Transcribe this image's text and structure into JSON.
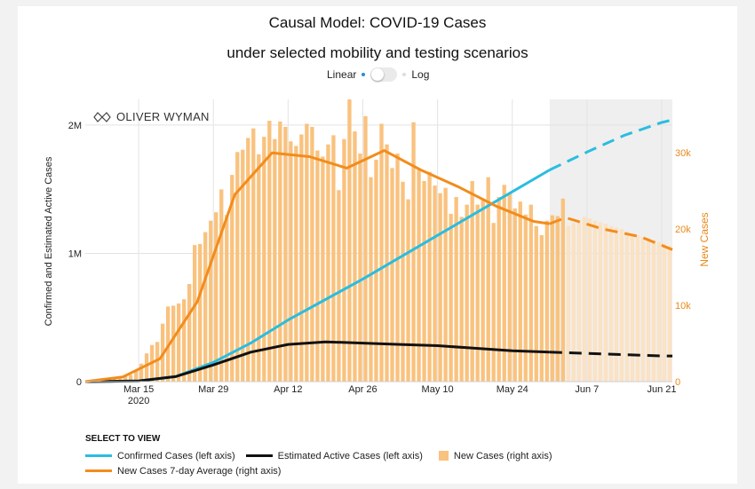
{
  "header": {
    "title": "Causal Model: COVID-19 Cases",
    "subtitle": "under selected mobility and testing scenarios"
  },
  "scale_toggle": {
    "left_label": "Linear",
    "right_label": "Log",
    "selected": "Linear"
  },
  "logo_text": "OLIVER WYMAN",
  "legend": {
    "title": "SELECT TO VIEW",
    "items": [
      {
        "label": "Confirmed Cases (left axis)",
        "color": "#29bde0",
        "kind": "line"
      },
      {
        "label": "Estimated Active Cases (left axis)",
        "color": "#111111",
        "kind": "line"
      },
      {
        "label": "New Cases (right axis)",
        "color": "#f9c27e",
        "kind": "box"
      },
      {
        "label": "New Cases 7-day Average (right axis)",
        "color": "#f28c1c",
        "kind": "line"
      }
    ]
  },
  "chart_data": {
    "type": "bar",
    "ylabel": "Confirmed and Estimated Active Cases",
    "ylabel_right": "New Cases",
    "left_ticks": [
      {
        "v": 0,
        "label": "0"
      },
      {
        "v": 1000000,
        "label": "1M"
      },
      {
        "v": 2000000,
        "label": "2M"
      }
    ],
    "right_ticks": [
      {
        "v": 0,
        "label": "0"
      },
      {
        "v": 10000,
        "label": "10k"
      },
      {
        "v": 20000,
        "label": "20k"
      },
      {
        "v": 30000,
        "label": "30k"
      }
    ],
    "x_ticks": [
      {
        "date": "2020-03-15",
        "label": "Mar 15",
        "label2": "2020"
      },
      {
        "date": "2020-03-29",
        "label": "Mar 29"
      },
      {
        "date": "2020-04-12",
        "label": "Apr 12"
      },
      {
        "date": "2020-04-26",
        "label": "Apr 26"
      },
      {
        "date": "2020-05-10",
        "label": "May 10"
      },
      {
        "date": "2020-05-24",
        "label": "May 24"
      },
      {
        "date": "2020-06-07",
        "label": "Jun 7"
      },
      {
        "date": "2020-06-21",
        "label": "Jun 21"
      }
    ],
    "x_range": [
      "2020-03-05",
      "2020-06-23"
    ],
    "left_ylim": [
      0,
      2200000
    ],
    "right_ylim": [
      0,
      37000
    ],
    "forecast_start": "2020-05-31",
    "new_cases": {
      "start": "2020-03-05",
      "values": [
        60,
        120,
        210,
        280,
        390,
        490,
        590,
        790,
        900,
        1480,
        2350,
        3700,
        4800,
        5200,
        7600,
        9850,
        9950,
        10250,
        10800,
        12800,
        17900,
        18050,
        19600,
        21100,
        22200,
        25200,
        21850,
        27100,
        30100,
        30400,
        31950,
        33200,
        29800,
        32100,
        34200,
        31800,
        34100,
        33400,
        31500,
        30900,
        32400,
        33800,
        33400,
        30300,
        29500,
        31100,
        32300,
        25100,
        31800,
        37000,
        32800,
        29900,
        34800,
        26800,
        29100,
        33800,
        31100,
        28000,
        29900,
        26200,
        23900,
        34000,
        27900,
        26300,
        27500,
        25700,
        24700,
        25400,
        22000,
        24200,
        21600,
        23200,
        26300,
        23200,
        23900,
        26800,
        20800,
        24200,
        25800,
        24700,
        22700,
        23600,
        21900,
        23200,
        20400,
        19200,
        21100,
        21800,
        21700,
        24000
      ],
      "forecast_values": [
        20400,
        20800,
        21100,
        21600,
        21400,
        21100,
        20900,
        20700,
        20400,
        20200,
        20000,
        19700,
        19400,
        19200,
        19000,
        18800,
        18600,
        18300,
        18100,
        17800,
        17600,
        17400,
        17100
      ]
    },
    "series": [
      {
        "name": "Confirmed Cases (left axis)",
        "color": "#29bde0",
        "points": [
          [
            "2020-03-05",
            0
          ],
          [
            "2020-03-15",
            5000
          ],
          [
            "2020-03-22",
            40000
          ],
          [
            "2020-03-29",
            150000
          ],
          [
            "2020-04-05",
            300000
          ],
          [
            "2020-04-12",
            480000
          ],
          [
            "2020-04-19",
            640000
          ],
          [
            "2020-04-26",
            800000
          ],
          [
            "2020-05-03",
            970000
          ],
          [
            "2020-05-10",
            1140000
          ],
          [
            "2020-05-17",
            1310000
          ],
          [
            "2020-05-24",
            1480000
          ],
          [
            "2020-05-31",
            1650000
          ]
        ],
        "forecast": [
          [
            "2020-05-31",
            1650000
          ],
          [
            "2020-06-07",
            1790000
          ],
          [
            "2020-06-14",
            1920000
          ],
          [
            "2020-06-21",
            2020000
          ],
          [
            "2020-06-23",
            2040000
          ]
        ]
      },
      {
        "name": "Estimated Active Cases (left axis)",
        "color": "#111111",
        "points": [
          [
            "2020-03-05",
            0
          ],
          [
            "2020-03-15",
            5000
          ],
          [
            "2020-03-22",
            40000
          ],
          [
            "2020-03-29",
            130000
          ],
          [
            "2020-04-05",
            230000
          ],
          [
            "2020-04-12",
            290000
          ],
          [
            "2020-04-19",
            310000
          ],
          [
            "2020-04-26",
            300000
          ],
          [
            "2020-05-03",
            290000
          ],
          [
            "2020-05-10",
            280000
          ],
          [
            "2020-05-17",
            260000
          ],
          [
            "2020-05-24",
            240000
          ],
          [
            "2020-05-31",
            230000
          ]
        ],
        "forecast": [
          [
            "2020-05-31",
            230000
          ],
          [
            "2020-06-07",
            220000
          ],
          [
            "2020-06-14",
            210000
          ],
          [
            "2020-06-21",
            200000
          ],
          [
            "2020-06-23",
            200000
          ]
        ]
      },
      {
        "name": "New Cases 7-day Average (right axis)",
        "color": "#f28c1c",
        "axis": "right",
        "points": [
          [
            "2020-03-05",
            0
          ],
          [
            "2020-03-12",
            600
          ],
          [
            "2020-03-19",
            3000
          ],
          [
            "2020-03-26",
            10500
          ],
          [
            "2020-04-02",
            24500
          ],
          [
            "2020-04-09",
            30000
          ],
          [
            "2020-04-16",
            29500
          ],
          [
            "2020-04-23",
            28000
          ],
          [
            "2020-04-30",
            30300
          ],
          [
            "2020-05-07",
            27700
          ],
          [
            "2020-05-14",
            25500
          ],
          [
            "2020-05-21",
            23000
          ],
          [
            "2020-05-28",
            21000
          ],
          [
            "2020-05-31",
            20700
          ]
        ],
        "forecast": [
          [
            "2020-05-31",
            20700
          ],
          [
            "2020-06-03",
            21500
          ],
          [
            "2020-06-10",
            20000
          ],
          [
            "2020-06-17",
            19000
          ],
          [
            "2020-06-23",
            17300
          ]
        ]
      }
    ]
  }
}
